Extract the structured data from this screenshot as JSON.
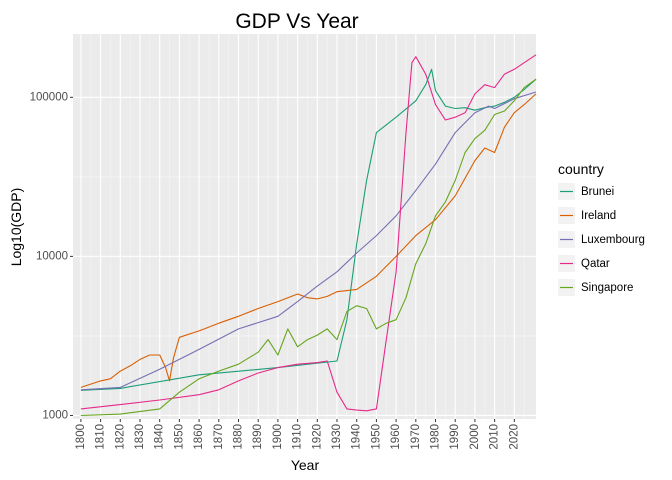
{
  "chart_data": {
    "type": "line",
    "title": "GDP Vs Year",
    "xlabel": "Year",
    "ylabel": "Log10(GDP)",
    "y_scale": "log",
    "xlim": [
      1796,
      2031
    ],
    "ylim": [
      950,
      250000
    ],
    "x_ticks": [
      1800,
      1810,
      1820,
      1830,
      1840,
      1850,
      1860,
      1870,
      1880,
      1890,
      1900,
      1910,
      1920,
      1930,
      1940,
      1950,
      1960,
      1970,
      1980,
      1990,
      2000,
      2010,
      2020
    ],
    "y_ticks": [
      1000,
      10000,
      100000
    ],
    "y_tick_labels": [
      "1000",
      "10000",
      "100000"
    ],
    "grid": true,
    "background": "#ebebeb",
    "legend": {
      "title": "country",
      "position": "right"
    },
    "series": [
      {
        "name": "Brunei",
        "color": "#1b9e77",
        "x": [
          1800,
          1820,
          1860,
          1900,
          1930,
          1935,
          1940,
          1945,
          1950,
          1960,
          1970,
          1975,
          1978,
          1980,
          1985,
          1990,
          1995,
          2000,
          2005,
          2010,
          2015,
          2020,
          2025,
          2031
        ],
        "y": [
          1440,
          1480,
          1800,
          2000,
          2200,
          4000,
          12000,
          30000,
          60000,
          75000,
          95000,
          120000,
          150000,
          110000,
          88000,
          85000,
          86000,
          83000,
          86000,
          88000,
          93000,
          100000,
          112000,
          130000
        ]
      },
      {
        "name": "Ireland",
        "color": "#d95f02",
        "x": [
          1800,
          1810,
          1815,
          1820,
          1825,
          1830,
          1835,
          1840,
          1843,
          1845,
          1847,
          1850,
          1860,
          1870,
          1880,
          1890,
          1900,
          1910,
          1915,
          1920,
          1925,
          1930,
          1940,
          1950,
          1960,
          1970,
          1980,
          1990,
          2000,
          2005,
          2010,
          2015,
          2020,
          2025,
          2031
        ],
        "y": [
          1500,
          1650,
          1700,
          1900,
          2050,
          2250,
          2400,
          2400,
          2000,
          1650,
          2300,
          3100,
          3400,
          3800,
          4200,
          4700,
          5200,
          5800,
          5500,
          5400,
          5600,
          6000,
          6200,
          7500,
          10000,
          13500,
          17000,
          24000,
          40000,
          48000,
          45000,
          65000,
          80000,
          90000,
          105000
        ]
      },
      {
        "name": "Luxembourg",
        "color": "#7570b3",
        "x": [
          1800,
          1820,
          1840,
          1860,
          1880,
          1900,
          1910,
          1920,
          1930,
          1940,
          1950,
          1960,
          1970,
          1980,
          1990,
          2000,
          2007,
          2010,
          2020,
          2031
        ],
        "y": [
          1450,
          1500,
          1950,
          2600,
          3500,
          4200,
          5200,
          6500,
          8000,
          10500,
          13500,
          18000,
          26000,
          38000,
          60000,
          80000,
          88000,
          85000,
          98000,
          108000
        ]
      },
      {
        "name": "Qatar",
        "color": "#e7298a",
        "x": [
          1800,
          1820,
          1840,
          1860,
          1870,
          1880,
          1890,
          1900,
          1910,
          1920,
          1925,
          1930,
          1935,
          1940,
          1945,
          1950,
          1955,
          1960,
          1965,
          1968,
          1970,
          1975,
          1980,
          1985,
          1990,
          1995,
          2000,
          2005,
          2010,
          2015,
          2020,
          2025,
          2031
        ],
        "y": [
          1100,
          1170,
          1250,
          1350,
          1450,
          1650,
          1850,
          2000,
          2100,
          2150,
          2200,
          1400,
          1100,
          1080,
          1070,
          1100,
          3000,
          8000,
          60000,
          165000,
          180000,
          140000,
          90000,
          72000,
          75000,
          80000,
          105000,
          120000,
          115000,
          140000,
          150000,
          165000,
          185000
        ]
      },
      {
        "name": "Singapore",
        "color": "#66a61e",
        "x": [
          1800,
          1820,
          1840,
          1850,
          1860,
          1870,
          1880,
          1890,
          1895,
          1900,
          1905,
          1910,
          1915,
          1920,
          1925,
          1930,
          1935,
          1940,
          1945,
          1950,
          1955,
          1960,
          1965,
          1970,
          1975,
          1980,
          1985,
          1990,
          1995,
          2000,
          2005,
          2010,
          2015,
          2020,
          2025,
          2031
        ],
        "y": [
          1000,
          1020,
          1100,
          1400,
          1700,
          1900,
          2100,
          2500,
          3000,
          2400,
          3500,
          2700,
          3000,
          3200,
          3500,
          3000,
          4500,
          4900,
          4700,
          3500,
          3800,
          4000,
          5500,
          9000,
          12000,
          18000,
          22000,
          30000,
          45000,
          55000,
          62000,
          78000,
          82000,
          95000,
          115000,
          130000
        ]
      }
    ]
  }
}
